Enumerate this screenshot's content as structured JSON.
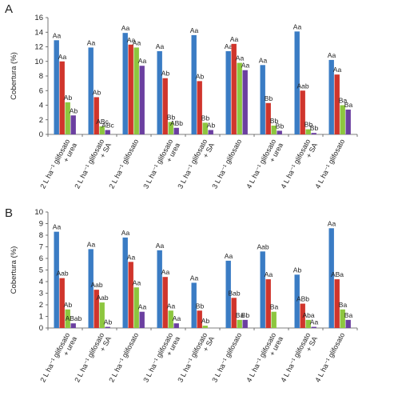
{
  "chart_data": [
    {
      "panel": "A",
      "type": "bar",
      "ylabel": "Cobertura (%)",
      "ylim": [
        0,
        16
      ],
      "yticks": [
        0,
        2,
        4,
        6,
        8,
        10,
        12,
        14,
        16
      ],
      "grid": false,
      "colors": [
        "#3a7cc4",
        "#d0352c",
        "#8dc63f",
        "#6b3fa0"
      ],
      "categories": [
        {
          "line1": "2 L ha⁻¹ glifosato",
          "line2": "+ urea"
        },
        {
          "line1": "2 L ha⁻¹ glifosato",
          "line2": "+ SA"
        },
        {
          "line1": "2 L ha⁻¹ glifosato",
          "line2": ""
        },
        {
          "line1": "3 L ha⁻¹ glifosato",
          "line2": "+ urea"
        },
        {
          "line1": "3 L ha⁻¹ glifosato",
          "line2": "+ SA"
        },
        {
          "line1": "3 L ha⁻¹ glifosato",
          "line2": ""
        },
        {
          "line1": "4 L ha⁻¹ glifosato",
          "line2": "+ urea"
        },
        {
          "line1": "4 L ha⁻¹ glifosato",
          "line2": "+ SA"
        },
        {
          "line1": "4 L ha⁻¹ glifosato",
          "line2": ""
        }
      ],
      "series": [
        {
          "values": [
            12.9,
            11.9,
            13.9,
            11.4,
            13.6,
            11.4,
            9.5,
            14.1,
            10.2
          ],
          "labels": [
            "Aa",
            "Aa",
            "Aa",
            "Aa",
            "Aa",
            "Aa",
            "Aa",
            "Aa",
            "Aa"
          ]
        },
        {
          "values": [
            10.0,
            5.1,
            12.3,
            7.7,
            7.3,
            12.4,
            4.3,
            6.0,
            8.2
          ],
          "labels": [
            "Aa",
            "Ab",
            "Aa",
            "Ab",
            "Ab",
            "Aa",
            "Bb",
            "Aab",
            "Aa"
          ]
        },
        {
          "values": [
            4.4,
            1.1,
            11.9,
            1.7,
            1.6,
            9.8,
            1.2,
            0.7,
            4.0
          ],
          "labels": [
            "Ab",
            "ABc",
            "Aa",
            "Bb",
            "Bb",
            "Aa",
            "Bb",
            "Bb",
            "Ba"
          ]
        },
        {
          "values": [
            2.6,
            0.6,
            9.4,
            0.9,
            0.6,
            8.8,
            0.5,
            0.2,
            3.4
          ],
          "labels": [
            "Ab",
            "ABc",
            "Aa",
            "ABb",
            "Ab",
            "Aa",
            "Bb",
            "Bb",
            "Ba"
          ]
        }
      ]
    },
    {
      "panel": "B",
      "type": "bar",
      "ylabel": "Cobertura (%)",
      "ylim": [
        0,
        10
      ],
      "yticks": [
        0,
        1,
        2,
        3,
        4,
        5,
        6,
        7,
        8,
        9,
        10
      ],
      "grid": false,
      "colors": [
        "#3a7cc4",
        "#d0352c",
        "#8dc63f",
        "#6b3fa0"
      ],
      "categories": [
        {
          "line1": "2 L ha⁻¹ glifosato",
          "line2": "+ urea"
        },
        {
          "line1": "2 L ha⁻¹ glifosato",
          "line2": "+ SA"
        },
        {
          "line1": "2 L ha⁻¹ glifosato",
          "line2": ""
        },
        {
          "line1": "3 L ha⁻¹ glifosato",
          "line2": "+ urea"
        },
        {
          "line1": "3 L ha⁻¹ glifosato",
          "line2": "+ SA"
        },
        {
          "line1": "3 L ha⁻¹ glifosato",
          "line2": ""
        },
        {
          "line1": "4 L ha⁻¹ glifosato",
          "line2": "+ urea"
        },
        {
          "line1": "4 L ha⁻¹ glifosato",
          "line2": "+ SA"
        },
        {
          "line1": "4 L ha⁻¹ glifosato",
          "line2": ""
        }
      ],
      "series": [
        {
          "values": [
            8.3,
            6.8,
            7.8,
            6.7,
            3.9,
            5.8,
            6.6,
            4.6,
            8.6
          ],
          "labels": [
            "Aa",
            "Aa",
            "Aa",
            "Aa",
            "Aa",
            "Aa",
            "Aab",
            "Ab",
            "Aa"
          ]
        },
        {
          "values": [
            4.3,
            3.3,
            5.7,
            4.4,
            1.5,
            2.6,
            4.2,
            2.1,
            4.2
          ],
          "labels": [
            "Aab",
            "Aab",
            "Aa",
            "Aa",
            "Bb",
            "Bab",
            "Aa",
            "ABb",
            "ABa"
          ]
        },
        {
          "values": [
            1.6,
            2.2,
            3.5,
            1.5,
            0.2,
            0.7,
            1.4,
            0.7,
            1.6
          ],
          "labels": [
            "Ab",
            "Aab",
            "Aa",
            "Aa",
            "Ab",
            "Ba",
            "Ba",
            "Aba",
            "Ba"
          ]
        },
        {
          "values": [
            0.4,
            0.1,
            1.4,
            0.4,
            0.0,
            0.7,
            0.0,
            0.1,
            0.7
          ],
          "labels": [
            "ABab",
            "Ab",
            "Aa",
            "Aa",
            "",
            "Bb",
            "",
            "Aa",
            "Ba"
          ]
        }
      ]
    }
  ]
}
